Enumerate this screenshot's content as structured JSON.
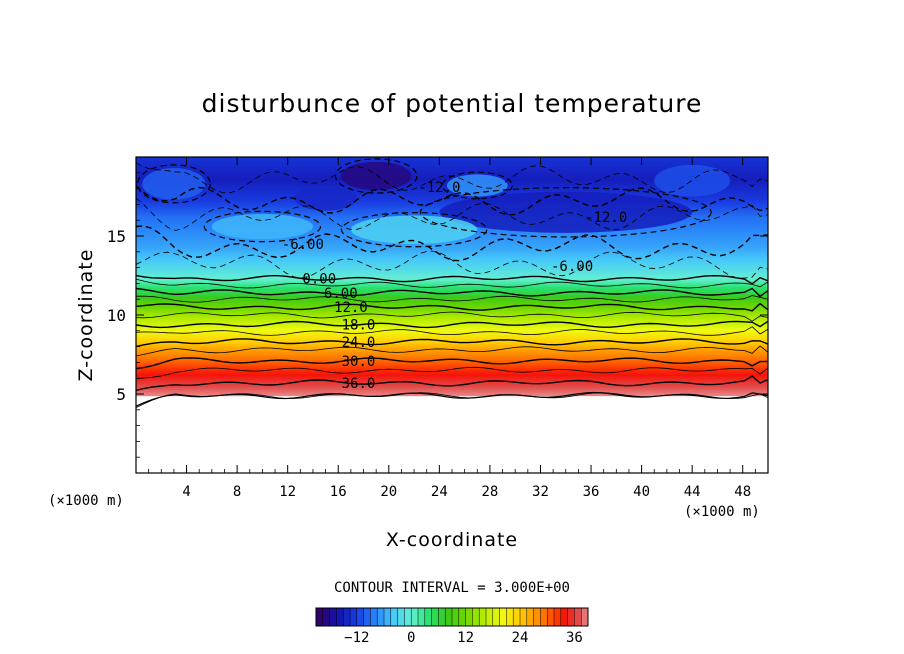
{
  "chart_data": {
    "type": "heatmap",
    "title": "disturbunce of potential temperature",
    "xlabel": "X-coordinate",
    "ylabel": "Z-coordinate",
    "x_unit": "(×1000 m)",
    "y_unit": "(×1000 m)",
    "xlim": [
      0,
      50
    ],
    "ylim": [
      0,
      20
    ],
    "x_ticks": [
      "4",
      "8",
      "12",
      "16",
      "20",
      "24",
      "28",
      "32",
      "36",
      "40",
      "44",
      "48"
    ],
    "y_ticks": [
      "5",
      "10",
      "15"
    ],
    "x_tick_values": [
      4,
      8,
      12,
      16,
      20,
      24,
      28,
      32,
      36,
      40,
      44,
      48
    ],
    "y_tick_values": [
      5,
      10,
      15
    ],
    "contour_interval_text": "CONTOUR INTERVAL = 3.000E+00",
    "contour_interval": 3.0,
    "colorbar": {
      "ticks": [
        "−12",
        "0",
        "12",
        "24",
        "36"
      ],
      "tick_values": [
        -12,
        0,
        12,
        24,
        36
      ],
      "range": [
        -21,
        39
      ]
    },
    "lower_boundary_z": 4.9,
    "profile": [
      {
        "z": 4.9,
        "theta": 39
      },
      {
        "z": 5.7,
        "theta": 36
      },
      {
        "z": 6.5,
        "theta": 33
      },
      {
        "z": 7.1,
        "theta": 30
      },
      {
        "z": 7.8,
        "theta": 27
      },
      {
        "z": 8.3,
        "theta": 24
      },
      {
        "z": 8.9,
        "theta": 21
      },
      {
        "z": 9.4,
        "theta": 18
      },
      {
        "z": 10.0,
        "theta": 15
      },
      {
        "z": 10.5,
        "theta": 12
      },
      {
        "z": 11.0,
        "theta": 9
      },
      {
        "z": 11.4,
        "theta": 6
      },
      {
        "z": 11.9,
        "theta": 3
      },
      {
        "z": 12.3,
        "theta": 0
      },
      {
        "z": 13.2,
        "theta": -3
      },
      {
        "z": 14.3,
        "theta": -6
      },
      {
        "z": 16.2,
        "theta": -9
      },
      {
        "z": 17.2,
        "theta": -12
      },
      {
        "z": 18.6,
        "theta": -15
      },
      {
        "z": 20.0,
        "theta": -13
      }
    ],
    "contour_labels": [
      {
        "text": "36.0",
        "x": 17.6,
        "z": 5.7
      },
      {
        "text": "30.0",
        "x": 17.6,
        "z": 7.1
      },
      {
        "text": "24.0",
        "x": 17.6,
        "z": 8.3
      },
      {
        "text": "18.0",
        "x": 17.6,
        "z": 9.4
      },
      {
        "text": "12.0",
        "x": 17.0,
        "z": 10.5
      },
      {
        "text": "6.00",
        "x": 16.2,
        "z": 11.4
      },
      {
        "text": "0.00",
        "x": 14.5,
        "z": 12.3
      },
      {
        "text": "-6.00",
        "x": 13.2,
        "z": 14.5
      },
      {
        "text": "-12.0",
        "x": 24.0,
        "z": 18.1
      },
      {
        "text": "-12.0",
        "x": 37.2,
        "z": 16.2
      },
      {
        "text": "-6.00",
        "x": 34.5,
        "z": 13.1
      }
    ]
  }
}
